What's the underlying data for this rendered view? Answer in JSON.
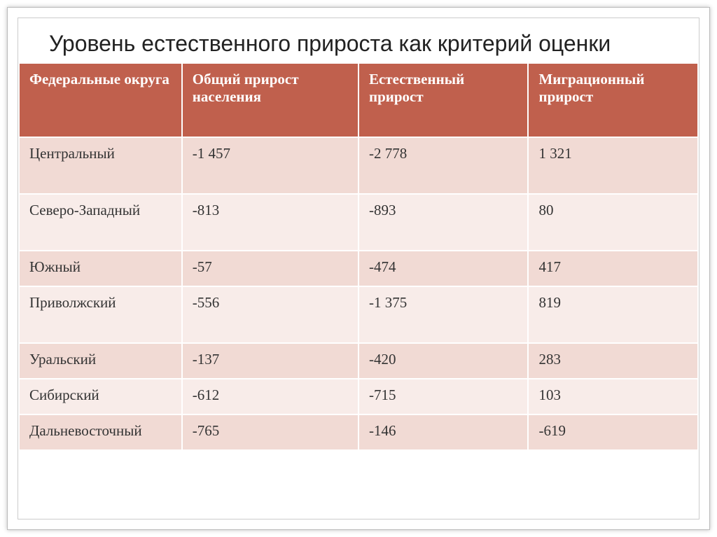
{
  "title": "Уровень естественного прироста как критерий оценки",
  "table": {
    "type": "table",
    "header_bg": "#c0604d",
    "header_fg": "#ffffff",
    "row_odd_bg": "#f1dad4",
    "row_even_bg": "#f8ece9",
    "cell_border": "#ffffff",
    "title_fontsize": 32,
    "header_fontsize": 21,
    "cell_fontsize": 21,
    "font_family": "Georgia, serif",
    "columns": [
      "Федеральные округа",
      "Общий прирост населения",
      "Естественный прирост",
      "Миграционный прирост"
    ],
    "column_widths_pct": [
      24,
      26,
      25,
      25
    ],
    "rows": [
      {
        "district": "Центральный",
        "total": "-1 457",
        "natural": "-2 778",
        "migration": "1 321",
        "height": "tall"
      },
      {
        "district": "Северо-Западный",
        "total": "-813",
        "natural": "-893",
        "migration": "80",
        "height": "tall"
      },
      {
        "district": "Южный",
        "total": "-57",
        "natural": "-474",
        "migration": "417",
        "height": "short"
      },
      {
        "district": "Приволжский",
        "total": "-556",
        "natural": "-1 375",
        "migration": "819",
        "height": "tall"
      },
      {
        "district": "Уральский",
        "total": "-137",
        "natural": "-420",
        "migration": "283",
        "height": "short"
      },
      {
        "district": "Сибирский",
        "total": "-612",
        "natural": "-715",
        "migration": "103",
        "height": "short"
      },
      {
        "district": "Дальневосточный",
        "total": "-765",
        "natural": "-146",
        "migration": "-619",
        "height": "short"
      }
    ]
  }
}
